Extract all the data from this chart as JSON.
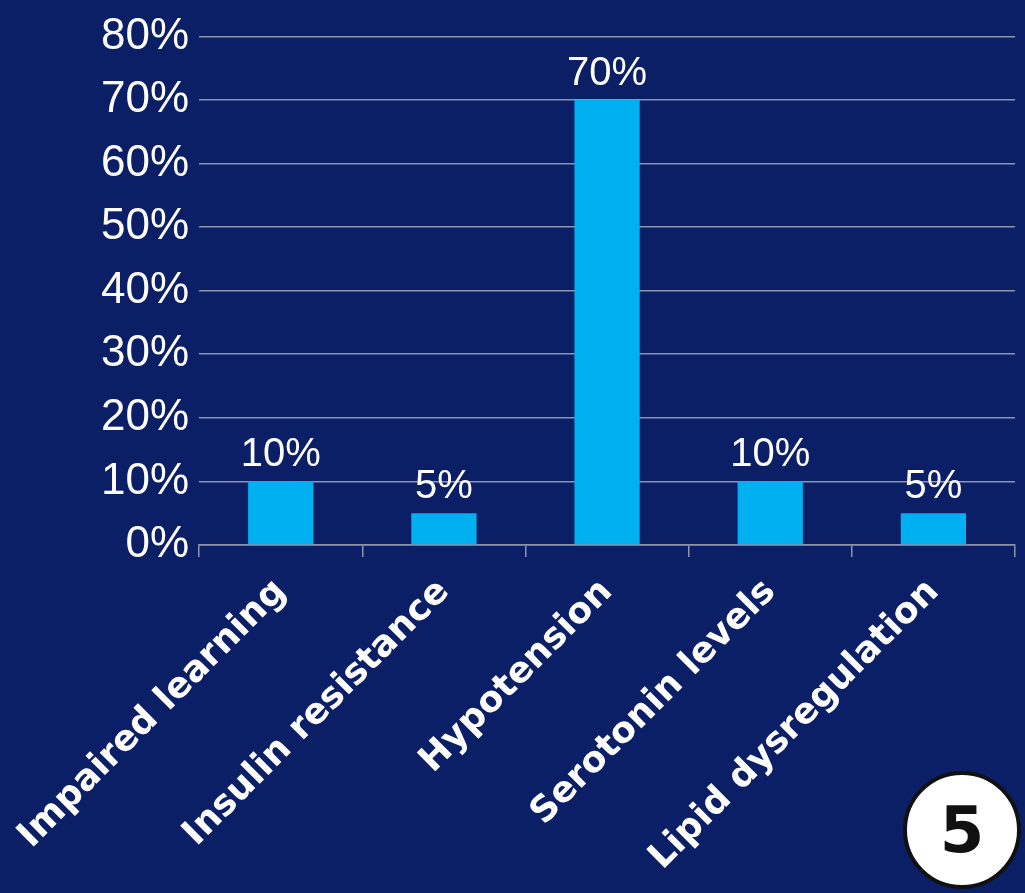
{
  "chart_data": {
    "type": "bar",
    "categories": [
      "Impaired learning",
      "Insulin resistance",
      "Hypotension",
      "Serotonin levels",
      "Lipid dysregulation"
    ],
    "values": [
      10,
      5,
      70,
      10,
      5
    ],
    "value_labels": [
      "10%",
      "5%",
      "70%",
      "10%",
      "5%"
    ],
    "color": "#00b0f0",
    "ylim": [
      0,
      80
    ],
    "yticks": [
      {
        "value": 0,
        "label": "0%"
      },
      {
        "value": 10,
        "label": "10%"
      },
      {
        "value": 20,
        "label": "20%"
      },
      {
        "value": 30,
        "label": "30%"
      },
      {
        "value": 40,
        "label": "40%"
      },
      {
        "value": 50,
        "label": "50%"
      },
      {
        "value": 60,
        "label": "60%"
      },
      {
        "value": 70,
        "label": "70%"
      },
      {
        "value": 80,
        "label": "80%"
      }
    ],
    "grid": "y",
    "legend": false,
    "annotations": [
      "5"
    ]
  }
}
